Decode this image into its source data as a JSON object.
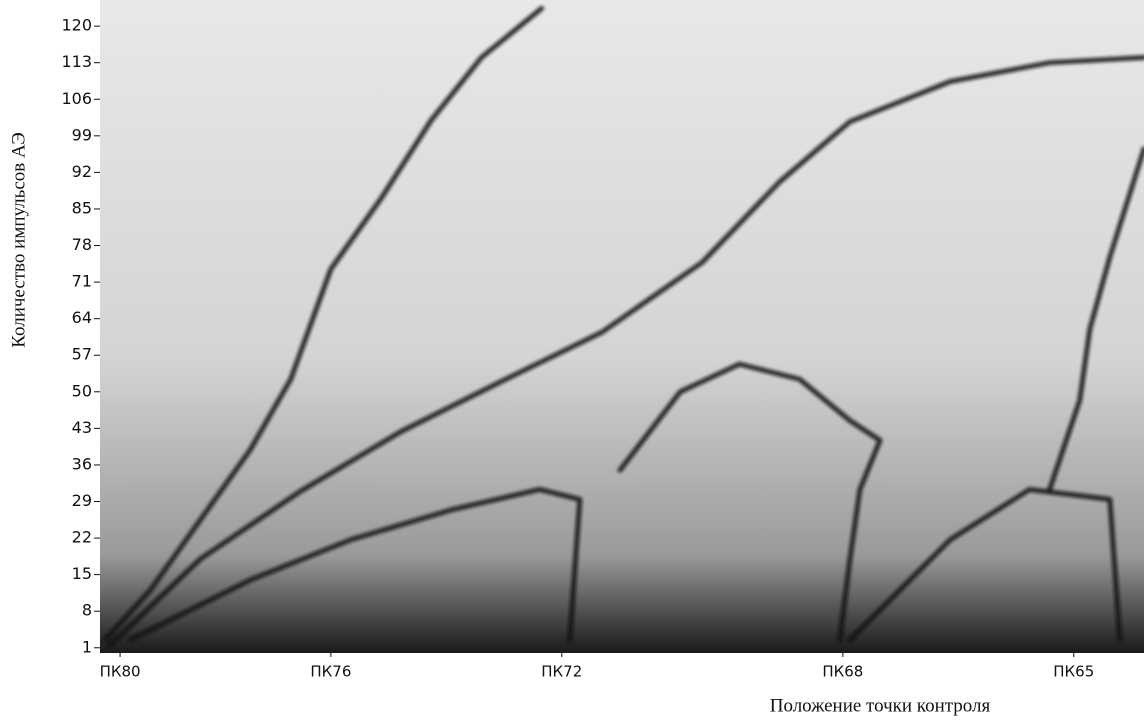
{
  "chart_data": {
    "type": "line",
    "x_label": "Положение точки контроля",
    "y_label": "Количество импульсов АЭ",
    "xlim": [
      0,
      104
    ],
    "ylim": [
      0,
      125
    ],
    "xticks": [
      {
        "value": 2,
        "label": "ПК80"
      },
      {
        "value": 23,
        "label": "ПК76"
      },
      {
        "value": 46,
        "label": "ПК72"
      },
      {
        "value": 74,
        "label": "ПК68"
      },
      {
        "value": 97,
        "label": "ПК65"
      }
    ],
    "yticks": [
      1,
      8,
      15,
      22,
      29,
      36,
      43,
      50,
      57,
      64,
      71,
      78,
      85,
      92,
      99,
      106,
      113,
      120
    ],
    "series": [
      {
        "color": "#111111",
        "x": [
          0.5,
          5,
          10,
          15,
          19,
          23,
          28,
          33,
          38,
          44
        ],
        "values": [
          2.5,
          12,
          25.5,
          39,
          52.4,
          73.5,
          87,
          102,
          114,
          123.4
        ]
      },
      {
        "color": "#111111",
        "x": [
          1,
          10,
          20,
          30,
          40,
          50,
          60,
          67.7,
          74.7,
          84.7,
          94.6,
          104
        ],
        "values": [
          1.5,
          18,
          31,
          42.4,
          52,
          61.4,
          74.8,
          90.2,
          101.7,
          109.4,
          113,
          114
        ]
      },
      {
        "color": "#111111",
        "x": [
          51.8,
          57.8,
          63.7,
          69.7,
          74.7,
          77.7,
          75.7,
          74.7,
          73.7
        ],
        "values": [
          35,
          50,
          55.3,
          52.4,
          44.5,
          40.7,
          31.3,
          17.9,
          2.5
        ]
      },
      {
        "color": "#111111",
        "x": [
          94.6,
          97.6,
          98.6,
          100.6,
          104
        ],
        "values": [
          31.3,
          48.4,
          62,
          75.8,
          96.5
        ]
      },
      {
        "color": "#111111",
        "x": [
          3,
          15,
          25,
          35,
          43.8,
          47.8,
          46.8
        ],
        "values": [
          2.5,
          14,
          21.7,
          27.4,
          31.3,
          29.4,
          2.5
        ]
      },
      {
        "color": "#111111",
        "x": [
          74.7,
          84.7,
          92.6,
          100.6,
          101.6
        ],
        "values": [
          2.5,
          21.7,
          31.3,
          29.4,
          2.5
        ]
      }
    ]
  }
}
